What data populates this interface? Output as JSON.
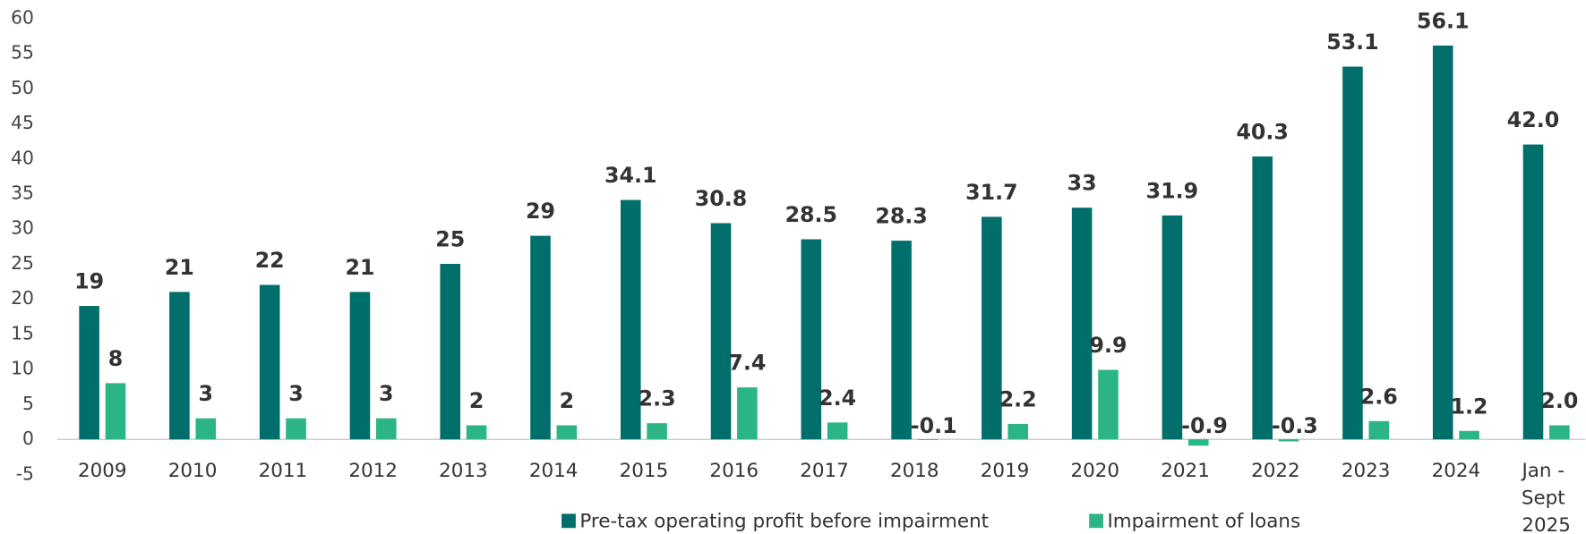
{
  "chart_data": {
    "type": "bar",
    "categories": [
      "2009",
      "2010",
      "2011",
      "2012",
      "2013",
      "2014",
      "2015",
      "2016",
      "2017",
      "2018",
      "2019",
      "2020",
      "2021",
      "2022",
      "2023",
      "2024",
      "Jan - Sept 2025"
    ],
    "series": [
      {
        "name": "Pre-tax operating profit before impairment",
        "color": "#006e6a",
        "values": [
          19,
          21,
          22,
          21,
          25,
          29,
          34.1,
          30.8,
          28.5,
          28.3,
          31.7,
          33,
          31.9,
          40.3,
          53.1,
          56.1,
          42.0
        ],
        "value_labels": [
          "19",
          "21",
          "22",
          "21",
          "25",
          "29",
          "34.1",
          "30.8",
          "28.5",
          "28.3",
          "31.7",
          "33",
          "31.9",
          "40.3",
          "53.1",
          "56.1",
          "42.0"
        ]
      },
      {
        "name": "Impairment of loans",
        "color": "#2bb585",
        "values": [
          8,
          3,
          3,
          3,
          2,
          2,
          2.3,
          7.4,
          2.4,
          -0.1,
          2.2,
          9.9,
          -0.9,
          -0.3,
          2.6,
          1.2,
          2.0
        ],
        "value_labels": [
          "8",
          "3",
          "3",
          "3",
          "2",
          "2",
          "2.3",
          "7.4",
          "2.4",
          "-0.1",
          "2.2",
          "9.9",
          "-0.9",
          "-0.3",
          "2.6",
          "1.2",
          "2.0"
        ]
      }
    ],
    "ylim": [
      -5,
      60
    ],
    "yticks": [
      -5,
      0,
      5,
      10,
      15,
      20,
      25,
      30,
      35,
      40,
      45,
      50,
      55,
      60
    ],
    "grid": false,
    "legend": "bottom"
  }
}
